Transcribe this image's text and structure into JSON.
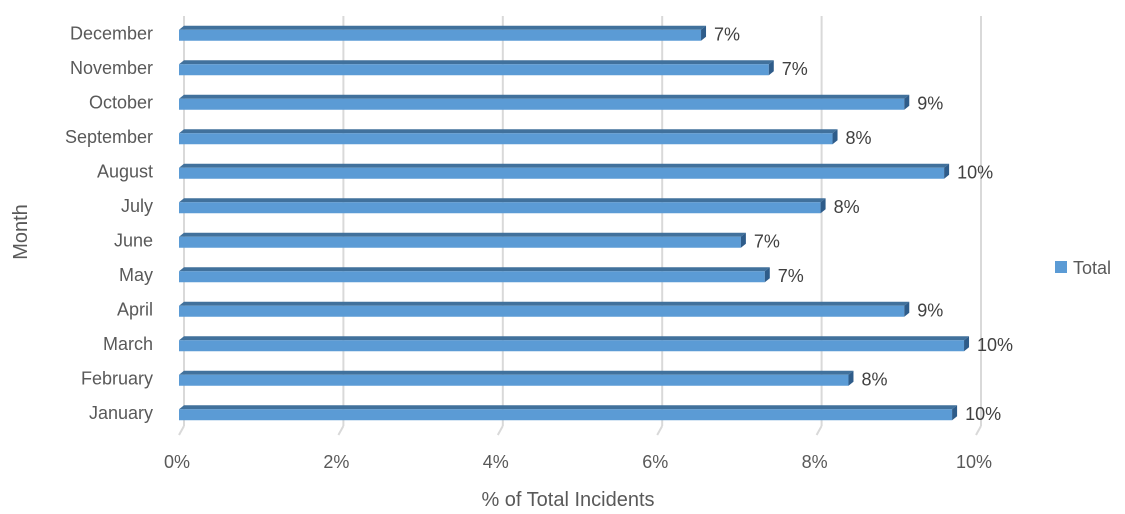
{
  "chart_data": {
    "type": "bar",
    "orientation": "horizontal",
    "title": "",
    "xlabel": "% of Total Incidents",
    "ylabel": "Month",
    "xlim": [
      0,
      10
    ],
    "x_ticks": [
      "0%",
      "2%",
      "4%",
      "6%",
      "8%",
      "10%"
    ],
    "x_tick_values": [
      0,
      2,
      4,
      6,
      8,
      10
    ],
    "grid": true,
    "legend_position": "right",
    "categories": [
      "January",
      "February",
      "March",
      "April",
      "May",
      "June",
      "July",
      "August",
      "September",
      "October",
      "November",
      "December"
    ],
    "series": [
      {
        "name": "Total",
        "color": "#5B9BD5",
        "values": [
          9.7,
          8.4,
          9.85,
          9.1,
          7.35,
          7.05,
          8.05,
          9.6,
          8.2,
          9.1,
          7.4,
          6.55
        ],
        "labels": [
          "10%",
          "8%",
          "10%",
          "9%",
          "7%",
          "7%",
          "8%",
          "10%",
          "8%",
          "9%",
          "7%",
          "7%"
        ]
      }
    ]
  }
}
